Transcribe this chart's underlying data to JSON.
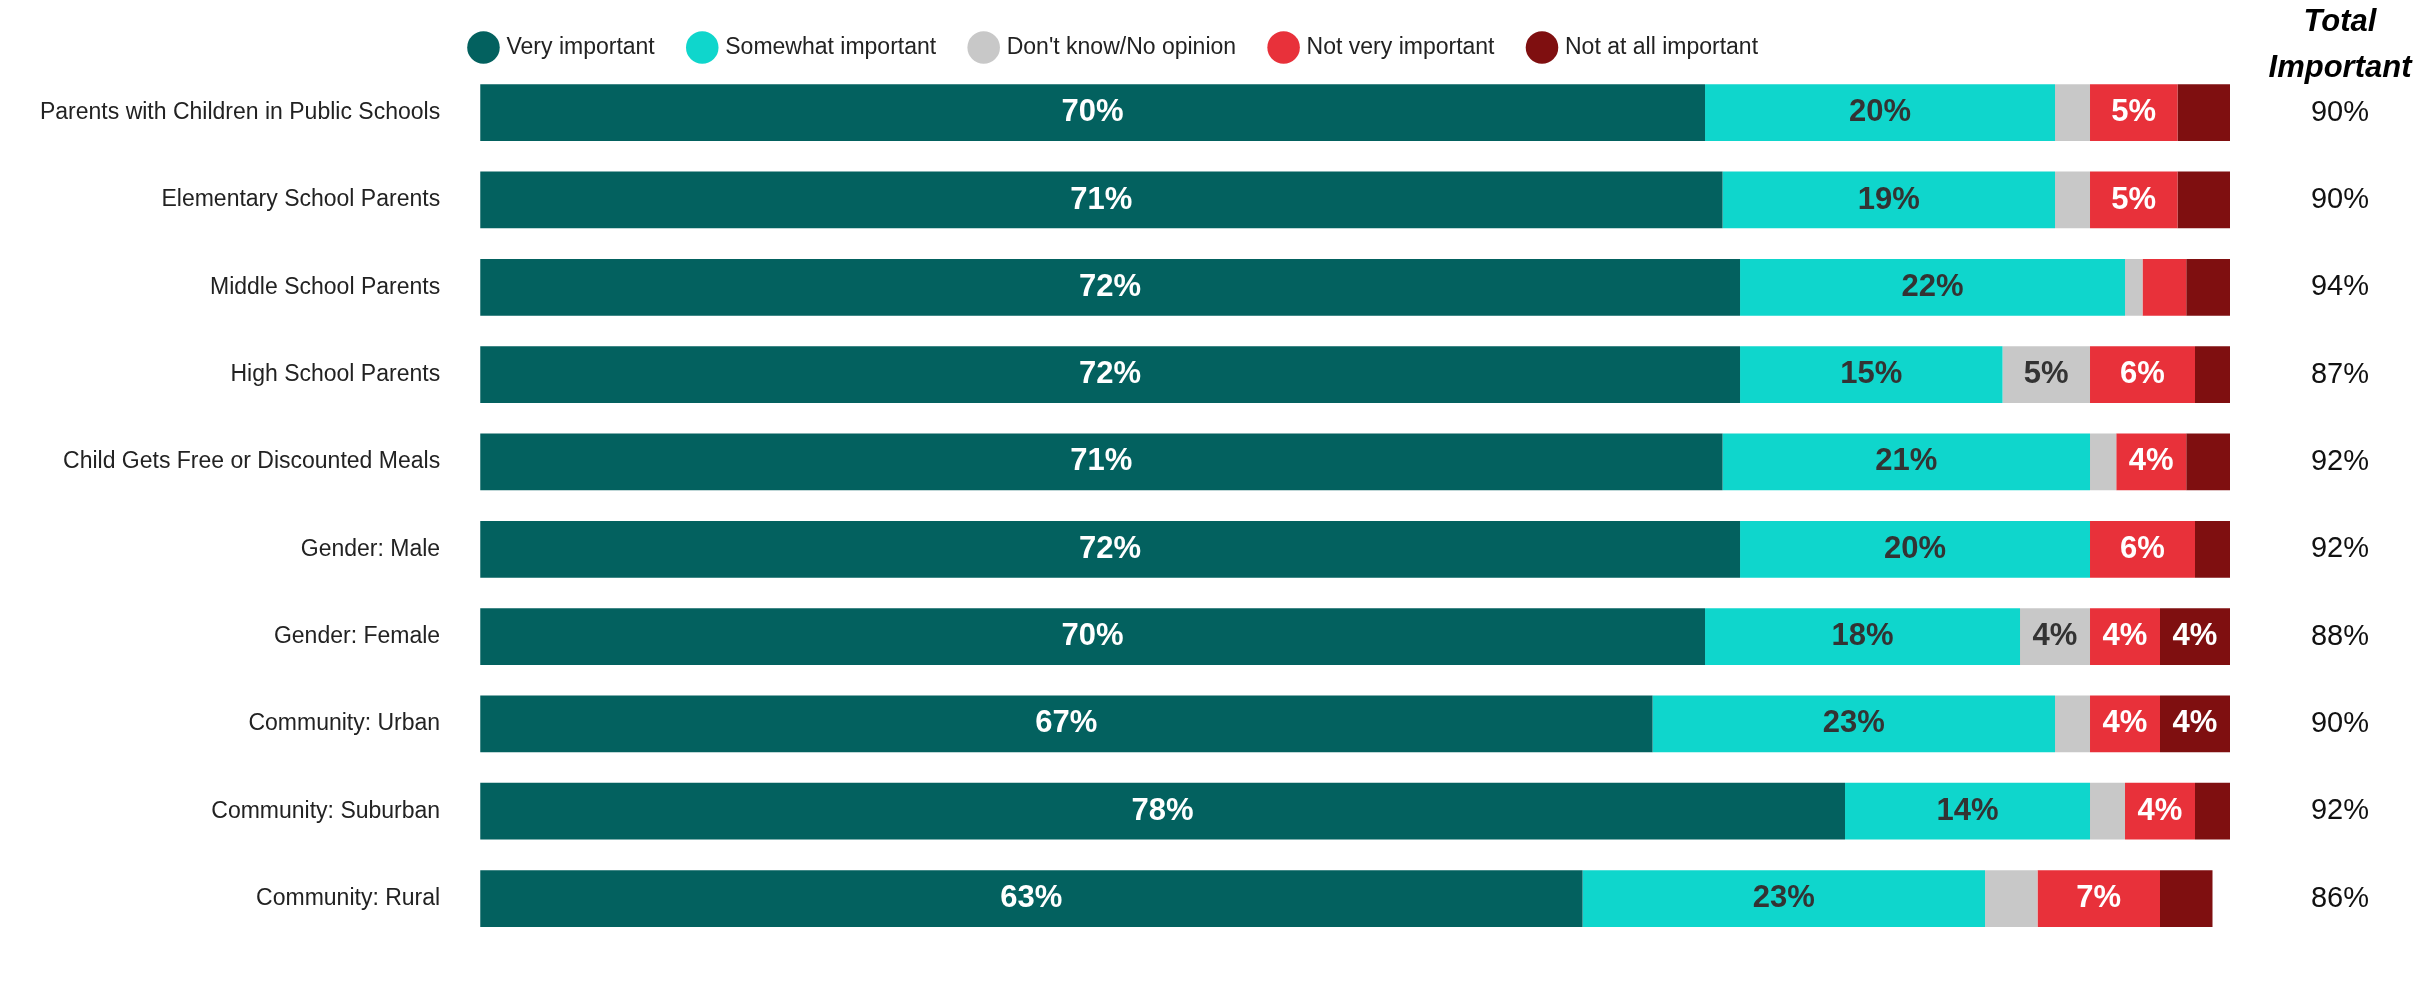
{
  "chart_data": {
    "type": "bar",
    "orientation": "horizontal",
    "stacked": true,
    "legend": "top",
    "grid": false,
    "tick_labels": "y",
    "xlim": [
      0,
      100
    ],
    "categories": [
      "Parents with Children in Public Schools",
      "Elementary School Parents",
      "Middle School Parents",
      "High School Parents",
      "Child Gets Free or Discounted Meals",
      "Gender: Male",
      "Gender: Female",
      "Community: Urban",
      "Community: Suburban",
      "Community: Rural"
    ],
    "series": [
      {
        "name": "Very important",
        "color": "#03615f",
        "values": [
          70,
          71,
          72,
          72,
          71,
          72,
          70,
          67,
          78,
          63
        ],
        "value_labels": [
          "70%",
          "71%",
          "72%",
          "72%",
          "71%",
          "72%",
          "70%",
          "67%",
          "78%",
          "63%"
        ]
      },
      {
        "name": "Somewhat important",
        "color": "#0fd6cc",
        "values": [
          20,
          19,
          22,
          15,
          21,
          20,
          18,
          23,
          14,
          23
        ],
        "value_labels": [
          "20%",
          "19%",
          "22%",
          "15%",
          "21%",
          "20%",
          "18%",
          "23%",
          "14%",
          "23%"
        ]
      },
      {
        "name": "Don't know/No opinion",
        "color": "#c8c8c8",
        "values": [
          2,
          2,
          1,
          5,
          1.5,
          0,
          4,
          2,
          2,
          3
        ],
        "value_labels": [
          null,
          null,
          null,
          "5%",
          null,
          null,
          "4%",
          null,
          null,
          null
        ]
      },
      {
        "name": "Not very important",
        "color": "#e8313a",
        "values": [
          5,
          5,
          2.5,
          6,
          4,
          6,
          4,
          4,
          4,
          7
        ],
        "value_labels": [
          "5%",
          "5%",
          null,
          "6%",
          "4%",
          "6%",
          "4%",
          "4%",
          "4%",
          "7%"
        ]
      },
      {
        "name": "Not at all important",
        "color": "#7f0f10",
        "values": [
          3,
          3,
          2.5,
          2,
          2.5,
          2,
          4,
          4,
          2,
          3
        ],
        "value_labels": [
          null,
          null,
          null,
          null,
          null,
          null,
          "4%",
          "4%",
          null,
          null
        ]
      }
    ],
    "annotations": [
      "Total Important",
      "90%",
      "90%",
      "94%",
      "87%",
      "92%",
      "92%",
      "88%",
      "90%",
      "92%",
      "86%"
    ]
  }
}
